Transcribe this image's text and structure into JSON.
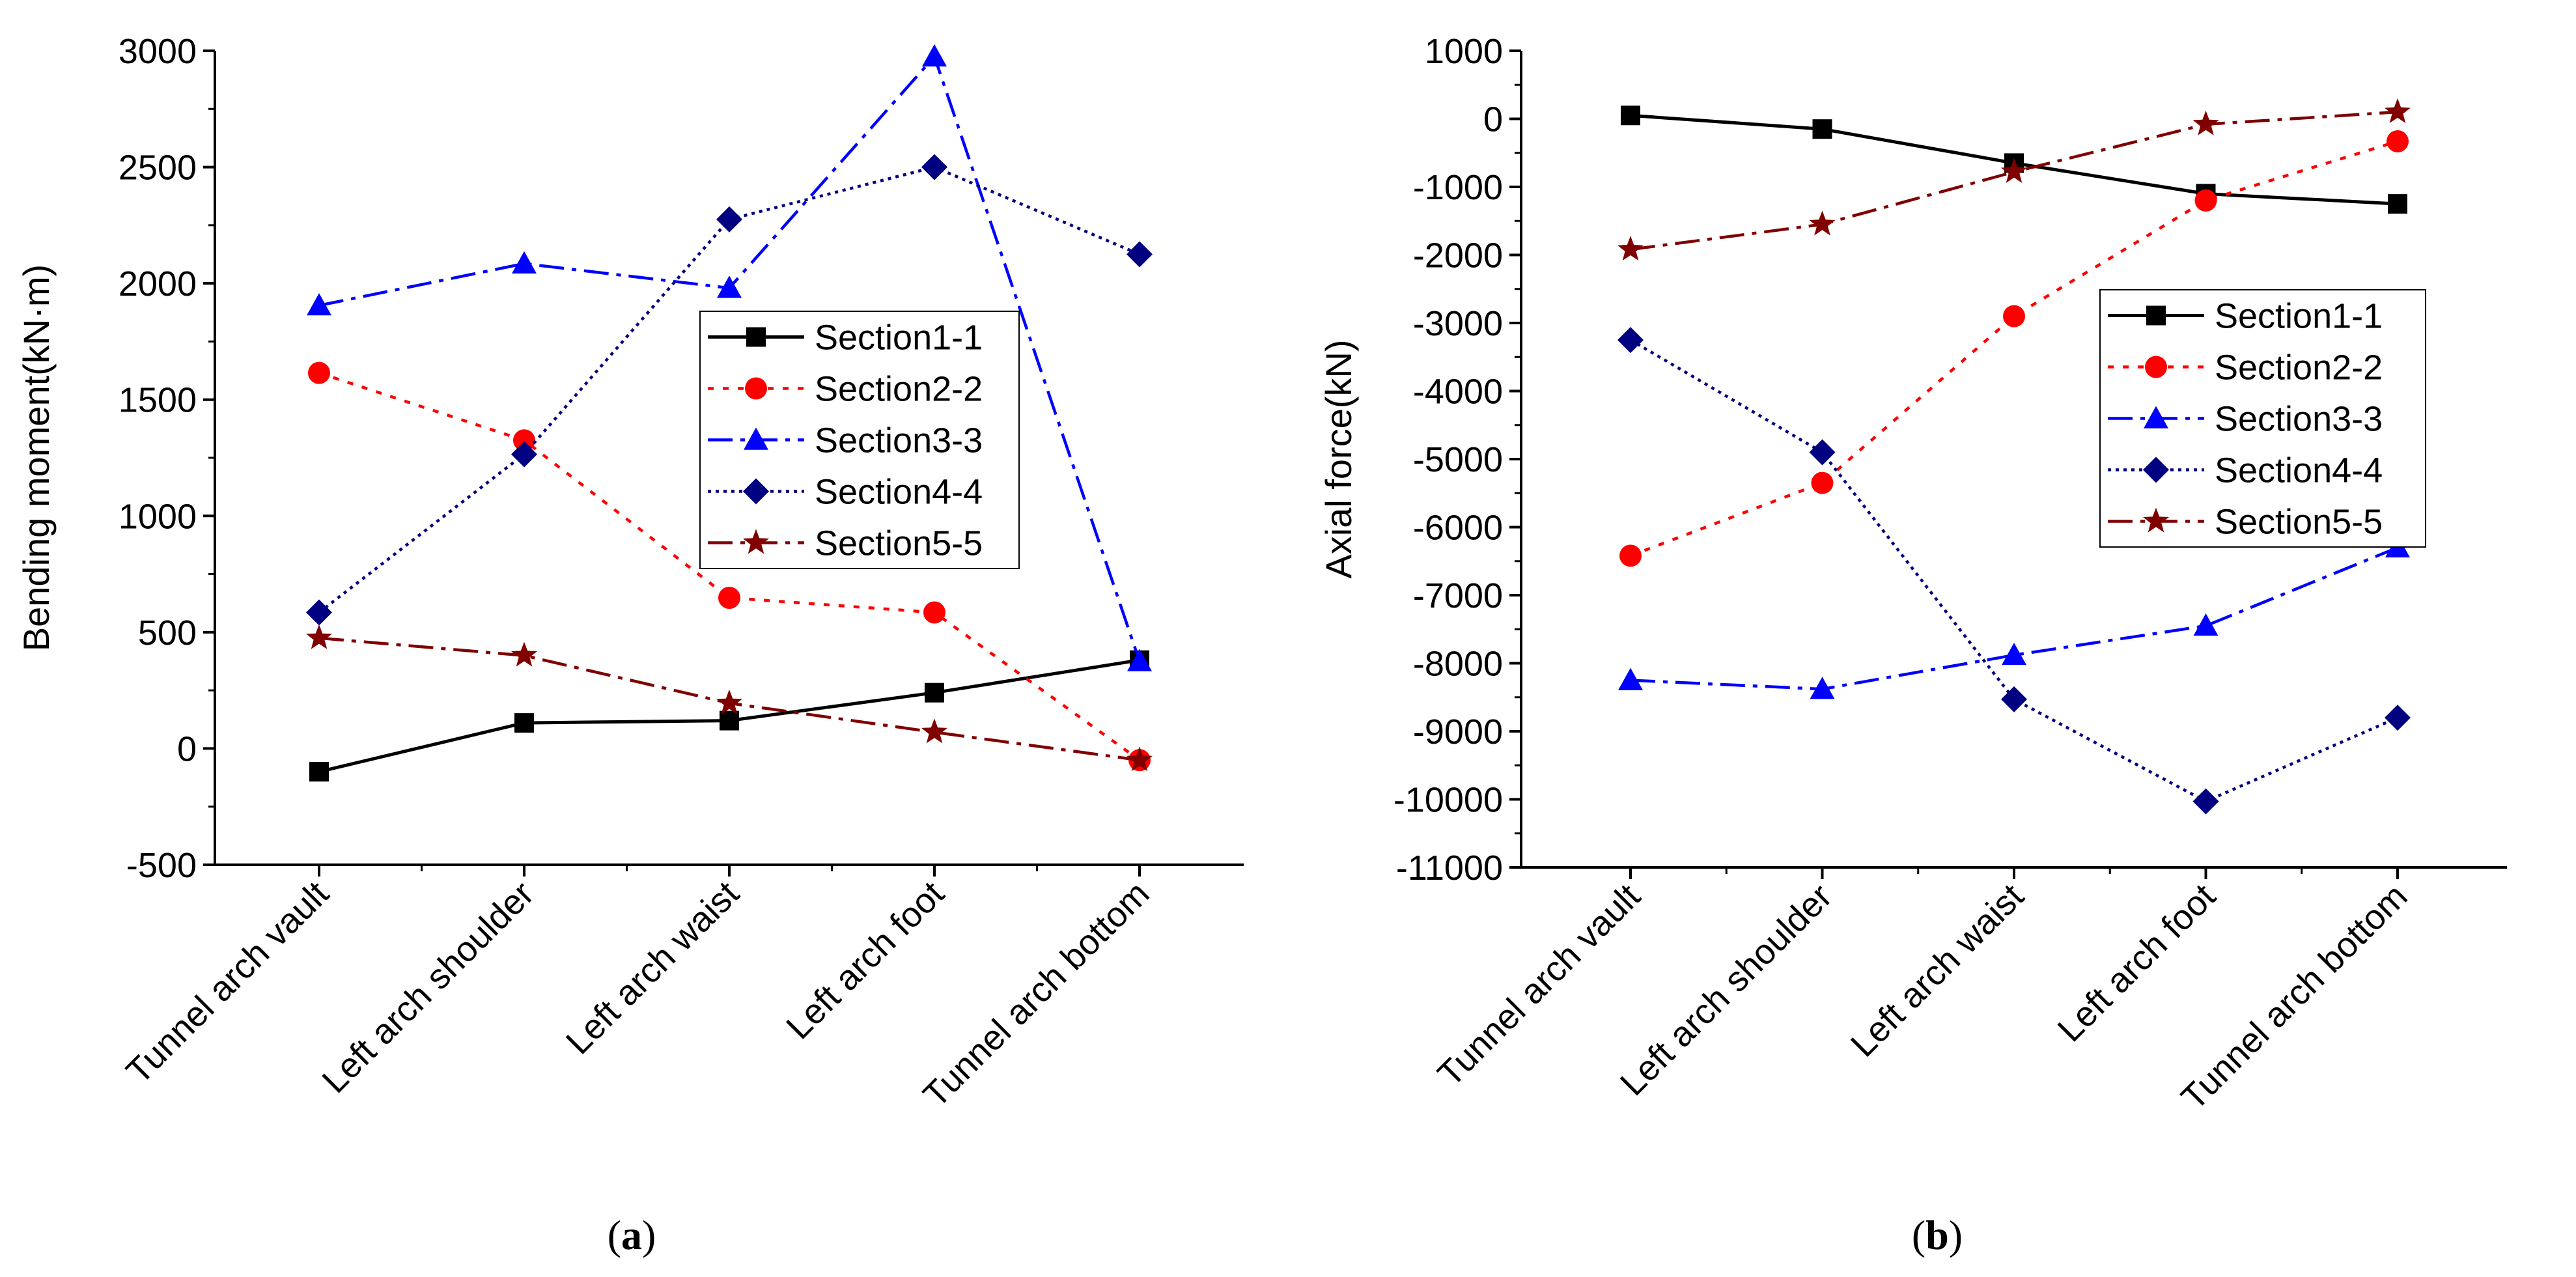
{
  "colors": {
    "axis": "#000000",
    "section1": "#000000",
    "section2": "#ff0000",
    "section3": "#0000ff",
    "section4": "#000080",
    "section5": "#800000"
  },
  "chart_data": [
    {
      "id": "a",
      "type": "line",
      "caption": "(a)",
      "caption_parts": [
        "(",
        "a",
        ")"
      ],
      "ylabel": "Bending moment(kN·m)",
      "xlabel": "",
      "categories": [
        "Tunnel arch vault",
        "Left arch shoulder",
        "Left arch waist",
        "Left arch foot",
        "Tunnel arch bottom"
      ],
      "ylim": [
        -500,
        3000
      ],
      "yticks": [
        -500,
        0,
        500,
        1000,
        1500,
        2000,
        2500,
        3000
      ],
      "ytick_labels": [
        "-500",
        "0",
        "500",
        "1000",
        "1500",
        "2000",
        "2500",
        "3000"
      ],
      "legend_position": "center-right",
      "grid": false,
      "series": [
        {
          "name": "Section1-1",
          "color": "#000000",
          "dash": "solid",
          "marker": "square",
          "values": [
            -100,
            110,
            120,
            240,
            380
          ]
        },
        {
          "name": "Section2-2",
          "color": "#ff0000",
          "dash": "dot",
          "marker": "circle",
          "values": [
            1615,
            1325,
            648,
            585,
            -50
          ]
        },
        {
          "name": "Section3-3",
          "color": "#0000ff",
          "dash": "dashdot",
          "marker": "triangle",
          "values": [
            1905,
            2085,
            1980,
            2975,
            375
          ]
        },
        {
          "name": "Section4-4",
          "color": "#000080",
          "dash": "shortdot",
          "marker": "diamond",
          "values": [
            585,
            1265,
            2275,
            2500,
            2125
          ]
        },
        {
          "name": "Section5-5",
          "color": "#800000",
          "dash": "dashdot",
          "marker": "star",
          "values": [
            475,
            400,
            195,
            70,
            -50
          ]
        }
      ]
    },
    {
      "id": "b",
      "type": "line",
      "caption": "(b)",
      "caption_parts": [
        "(",
        "b",
        ")"
      ],
      "ylabel": "Axial force(kN)",
      "xlabel": "",
      "categories": [
        "Tunnel arch vault",
        "Left arch shoulder",
        "Left arch waist",
        "Left arch foot",
        "Tunnel arch bottom"
      ],
      "ylim": [
        -11000,
        1000
      ],
      "yticks": [
        -11000,
        -10000,
        -9000,
        -8000,
        -7000,
        -6000,
        -5000,
        -4000,
        -3000,
        -2000,
        -1000,
        0,
        1000
      ],
      "ytick_labels": [
        "-11000",
        "-10000",
        "-9000",
        "-8000",
        "-7000",
        "-6000",
        "-5000",
        "-4000",
        "-3000",
        "-2000",
        "-1000",
        "0",
        "1000"
      ],
      "legend_position": "center-right",
      "grid": false,
      "series": [
        {
          "name": "Section1-1",
          "color": "#000000",
          "dash": "solid",
          "marker": "square",
          "values": [
            50,
            -150,
            -650,
            -1100,
            -1250
          ]
        },
        {
          "name": "Section2-2",
          "color": "#ff0000",
          "dash": "dot",
          "marker": "circle",
          "values": [
            -6420,
            -5350,
            -2900,
            -1200,
            -330
          ]
        },
        {
          "name": "Section3-3",
          "color": "#0000ff",
          "dash": "dashdot",
          "marker": "triangle",
          "values": [
            -8250,
            -8380,
            -7880,
            -7450,
            -6300
          ]
        },
        {
          "name": "Section4-4",
          "color": "#000080",
          "dash": "shortdot",
          "marker": "diamond",
          "values": [
            -3250,
            -4900,
            -8530,
            -10030,
            -8800
          ]
        },
        {
          "name": "Section5-5",
          "color": "#800000",
          "dash": "dashdot",
          "marker": "star",
          "values": [
            -1920,
            -1550,
            -780,
            -80,
            100
          ]
        }
      ]
    }
  ]
}
